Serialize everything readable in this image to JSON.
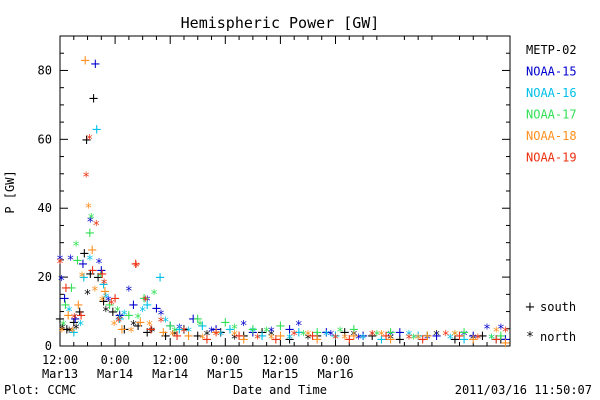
{
  "chart_data": {
    "type": "scatter",
    "title": "Hemispheric Power [GW]",
    "ylabel": "P [GW]",
    "xlabel": "Date and Time",
    "footer_left": "Plot: CCMC",
    "footer_right": "2011/03/16 11:50:07",
    "x_unit": "hours since 2011-03-13 12:00",
    "xlim": [
      0,
      98
    ],
    "ylim": [
      0,
      90
    ],
    "yticks": [
      0,
      20,
      40,
      60,
      80
    ],
    "xticks": [
      {
        "x": 0,
        "time": "12:00",
        "date": "Mar13"
      },
      {
        "x": 12,
        "time": "0:00",
        "date": "Mar14"
      },
      {
        "x": 24,
        "time": "12:00",
        "date": "Mar14"
      },
      {
        "x": 36,
        "time": "0:00",
        "date": "Mar15"
      },
      {
        "x": 48,
        "time": "12:00",
        "date": "Mar15"
      },
      {
        "x": 60,
        "time": "0:00",
        "date": "Mar16"
      }
    ],
    "marker_legend": [
      {
        "symbol": "+",
        "label": "south"
      },
      {
        "symbol": "*",
        "label": "north"
      }
    ],
    "series": [
      {
        "name": "METP-02",
        "color": "#000000",
        "points": [
          [
            0,
            8,
            "+"
          ],
          [
            1.5,
            5,
            "+"
          ],
          [
            3,
            7,
            "+"
          ],
          [
            4.3,
            10,
            "+"
          ],
          [
            5.3,
            27,
            "+"
          ],
          [
            5.8,
            60,
            "+"
          ],
          [
            6.6,
            21,
            "+"
          ],
          [
            7.3,
            72,
            "+"
          ],
          [
            8.3,
            20,
            "+"
          ],
          [
            9.5,
            13,
            "+"
          ],
          [
            11.5,
            10,
            "+"
          ],
          [
            14,
            5,
            "+"
          ],
          [
            17,
            6,
            "+"
          ],
          [
            19,
            4,
            "+"
          ],
          [
            23,
            3,
            "+"
          ],
          [
            27,
            5,
            "+"
          ],
          [
            30,
            3,
            "+"
          ],
          [
            35,
            4,
            "+"
          ],
          [
            40,
            3,
            "+"
          ],
          [
            44,
            4,
            "+"
          ],
          [
            50,
            2,
            "+"
          ],
          [
            56,
            3,
            "+"
          ],
          [
            62,
            4,
            "+"
          ],
          [
            68,
            3,
            "+"
          ],
          [
            74,
            2,
            "+"
          ],
          [
            80,
            3,
            "+"
          ],
          [
            86,
            2,
            "+"
          ],
          [
            92,
            3,
            "+"
          ],
          [
            96,
            2,
            "+"
          ],
          [
            0.5,
            5,
            "*"
          ],
          [
            2,
            4,
            "*"
          ],
          [
            3.5,
            5,
            "*"
          ],
          [
            6,
            15,
            "*"
          ],
          [
            10,
            10,
            "*"
          ],
          [
            13,
            8,
            "*"
          ],
          [
            16,
            6,
            "*"
          ],
          [
            20,
            4,
            "*"
          ],
          [
            25,
            3,
            "*"
          ],
          [
            32,
            3,
            "*"
          ],
          [
            38,
            2,
            "*"
          ],
          [
            46,
            3,
            "*"
          ],
          [
            54,
            2,
            "*"
          ],
          [
            64,
            3,
            "*"
          ],
          [
            72,
            2,
            "*"
          ],
          [
            82,
            3,
            "*"
          ],
          [
            90,
            2,
            "*"
          ]
        ]
      },
      {
        "name": "NOAA-15",
        "color": "#0000cc",
        "points": [
          [
            1,
            14,
            "+"
          ],
          [
            3.3,
            8,
            "+"
          ],
          [
            5,
            24,
            "+"
          ],
          [
            7.7,
            82,
            "+"
          ],
          [
            9,
            22,
            "+"
          ],
          [
            13,
            9,
            "+"
          ],
          [
            16,
            12,
            "+"
          ],
          [
            21,
            11,
            "+"
          ],
          [
            24,
            6,
            "+"
          ],
          [
            29,
            8,
            "+"
          ],
          [
            34,
            5,
            "+"
          ],
          [
            42,
            4,
            "+"
          ],
          [
            50,
            5,
            "+"
          ],
          [
            58,
            4,
            "+"
          ],
          [
            66,
            3,
            "+"
          ],
          [
            74,
            4,
            "+"
          ],
          [
            82,
            3,
            "+"
          ],
          [
            90,
            3,
            "+"
          ],
          [
            97,
            2,
            "+"
          ],
          [
            0,
            25,
            "*"
          ],
          [
            0.3,
            19,
            "*"
          ],
          [
            2.3,
            25,
            "*"
          ],
          [
            6.6,
            36,
            "*"
          ],
          [
            8.5,
            24,
            "*"
          ],
          [
            10.5,
            13,
            "*"
          ],
          [
            15,
            16,
            "*"
          ],
          [
            19,
            13,
            "*"
          ],
          [
            22,
            9,
            "*"
          ],
          [
            26,
            5,
            "*"
          ],
          [
            33,
            4,
            "*"
          ],
          [
            40,
            6,
            "*"
          ],
          [
            46,
            4,
            "*"
          ],
          [
            52,
            6,
            "*"
          ],
          [
            59,
            3,
            "*"
          ],
          [
            65,
            2,
            "*"
          ],
          [
            72,
            3,
            "*"
          ],
          [
            80,
            2,
            "*"
          ],
          [
            88,
            3,
            "*"
          ],
          [
            93,
            5,
            "*"
          ],
          [
            96,
            5,
            "*"
          ]
        ]
      },
      {
        "name": "NOAA-16",
        "color": "#00c0e8",
        "points": [
          [
            3,
            4,
            "+"
          ],
          [
            5.2,
            20,
            "+"
          ],
          [
            8,
            63,
            "+"
          ],
          [
            9.5,
            18,
            "+"
          ],
          [
            13,
            8,
            "+"
          ],
          [
            19,
            12,
            "+"
          ],
          [
            21.8,
            20,
            "+"
          ],
          [
            26,
            5,
            "+"
          ],
          [
            31,
            6,
            "+"
          ],
          [
            37,
            5,
            "+"
          ],
          [
            44,
            3,
            "+"
          ],
          [
            52,
            4,
            "+"
          ],
          [
            60,
            3,
            "+"
          ],
          [
            70,
            2,
            "+"
          ],
          [
            78,
            3,
            "+"
          ],
          [
            88,
            2,
            "+"
          ],
          [
            95,
            2,
            "+"
          ],
          [
            2,
            10,
            "*"
          ],
          [
            4.5,
            6,
            "*"
          ],
          [
            6.5,
            25,
            "*"
          ],
          [
            10,
            14,
            "*"
          ],
          [
            14,
            9,
            "*"
          ],
          [
            18,
            10,
            "*"
          ],
          [
            23,
            7,
            "*"
          ],
          [
            28,
            4,
            "*"
          ],
          [
            35,
            3,
            "*"
          ],
          [
            42,
            4,
            "*"
          ],
          [
            50,
            2,
            "*"
          ],
          [
            58,
            3,
            "*"
          ],
          [
            66,
            2,
            "*"
          ],
          [
            76,
            3,
            "*"
          ],
          [
            85,
            2,
            "*"
          ],
          [
            94,
            2,
            "*"
          ]
        ]
      },
      {
        "name": "NOAA-17",
        "color": "#33e055",
        "points": [
          [
            1.2,
            12,
            "+"
          ],
          [
            2.5,
            17,
            "+"
          ],
          [
            3.8,
            25,
            "+"
          ],
          [
            6.5,
            33,
            "+"
          ],
          [
            10.8,
            12,
            "+"
          ],
          [
            15,
            9,
            "+"
          ],
          [
            18.3,
            14,
            "+"
          ],
          [
            24,
            6,
            "+"
          ],
          [
            30,
            8,
            "+"
          ],
          [
            36,
            7,
            "+"
          ],
          [
            42,
            5,
            "+"
          ],
          [
            48,
            6,
            "+"
          ],
          [
            56,
            4,
            "+"
          ],
          [
            64,
            5,
            "+"
          ],
          [
            72,
            4,
            "+"
          ],
          [
            80,
            3,
            "+"
          ],
          [
            88,
            4,
            "+"
          ],
          [
            96,
            3,
            "+"
          ],
          [
            0.7,
            6,
            "*"
          ],
          [
            3.5,
            29,
            "*"
          ],
          [
            6.8,
            37,
            "*"
          ],
          [
            8.8,
            20,
            "*"
          ],
          [
            12.5,
            10,
            "*"
          ],
          [
            17,
            8,
            "*"
          ],
          [
            20.5,
            15,
            "*"
          ],
          [
            25,
            4,
            "*"
          ],
          [
            30.5,
            6,
            "*"
          ],
          [
            38,
            5,
            "*"
          ],
          [
            45,
            4,
            "*"
          ],
          [
            53,
            3,
            "*"
          ],
          [
            61,
            4,
            "*"
          ],
          [
            69,
            3,
            "*"
          ],
          [
            77,
            2,
            "*"
          ],
          [
            86,
            3,
            "*"
          ],
          [
            94,
            2,
            "*"
          ]
        ]
      },
      {
        "name": "NOAA-18",
        "color": "#ff9020",
        "points": [
          [
            1.8,
            9,
            "+"
          ],
          [
            4,
            12,
            "+"
          ],
          [
            5.5,
            83,
            "+"
          ],
          [
            7,
            28,
            "+"
          ],
          [
            9.8,
            16,
            "+"
          ],
          [
            13.5,
            5,
            "+"
          ],
          [
            17.5,
            7,
            "+"
          ],
          [
            22.5,
            4,
            "+"
          ],
          [
            28,
            3,
            "+"
          ],
          [
            34,
            4,
            "+"
          ],
          [
            40,
            2,
            "+"
          ],
          [
            48,
            3,
            "+"
          ],
          [
            56,
            2,
            "+"
          ],
          [
            64,
            3,
            "+"
          ],
          [
            72,
            2,
            "+"
          ],
          [
            80,
            3,
            "+"
          ],
          [
            90,
            2,
            "+"
          ],
          [
            97,
            1,
            "+"
          ],
          [
            0.4,
            4,
            "*"
          ],
          [
            2.7,
            4,
            "*"
          ],
          [
            4.8,
            20,
            "*"
          ],
          [
            6.2,
            40,
            "*"
          ],
          [
            7.6,
            16,
            "*"
          ],
          [
            9.2,
            13,
            "*"
          ],
          [
            11.8,
            6,
            "*"
          ],
          [
            15.5,
            4,
            "*"
          ],
          [
            19.5,
            6,
            "*"
          ],
          [
            24.5,
            3,
            "*"
          ],
          [
            31,
            2,
            "*"
          ],
          [
            38,
            3,
            "*"
          ],
          [
            46,
            2,
            "*"
          ],
          [
            54,
            3,
            "*"
          ],
          [
            62,
            2,
            "*"
          ],
          [
            70,
            3,
            "*"
          ],
          [
            78,
            2,
            "*"
          ],
          [
            86,
            3,
            "*"
          ],
          [
            95,
            4,
            "*"
          ]
        ]
      },
      {
        "name": "NOAA-19",
        "color": "#ee3010",
        "points": [
          [
            1.3,
            17,
            "+"
          ],
          [
            4.6,
            9,
            "+"
          ],
          [
            7.1,
            22,
            "+"
          ],
          [
            9.2,
            21,
            "+"
          ],
          [
            12,
            14,
            "+"
          ],
          [
            16.5,
            24,
            "+"
          ],
          [
            19.8,
            5,
            "+"
          ],
          [
            25.5,
            3,
            "+"
          ],
          [
            32,
            2,
            "+"
          ],
          [
            39,
            3,
            "+"
          ],
          [
            47,
            2,
            "+"
          ],
          [
            55,
            3,
            "+"
          ],
          [
            63,
            2,
            "+"
          ],
          [
            71,
            3,
            "+"
          ],
          [
            79,
            2,
            "+"
          ],
          [
            87,
            3,
            "+"
          ],
          [
            95,
            2,
            "+"
          ],
          [
            0,
            24,
            "*"
          ],
          [
            3.1,
            8,
            "*"
          ],
          [
            5.7,
            49,
            "*"
          ],
          [
            6.4,
            60,
            "*"
          ],
          [
            7.9,
            35,
            "*"
          ],
          [
            9.6,
            18,
            "*"
          ],
          [
            11.2,
            12,
            "*"
          ],
          [
            12.8,
            7,
            "*"
          ],
          [
            16.6,
            23,
            "*"
          ],
          [
            18.6,
            13,
            "*"
          ],
          [
            22,
            7,
            "*"
          ],
          [
            27,
            4,
            "*"
          ],
          [
            34,
            3,
            "*"
          ],
          [
            43,
            2,
            "*"
          ],
          [
            51,
            3,
            "*"
          ],
          [
            60,
            2,
            "*"
          ],
          [
            68,
            3,
            "*"
          ],
          [
            76,
            2,
            "*"
          ],
          [
            84,
            3,
            "*"
          ],
          [
            91,
            2,
            "*"
          ],
          [
            97,
            4,
            "*"
          ]
        ]
      }
    ]
  }
}
